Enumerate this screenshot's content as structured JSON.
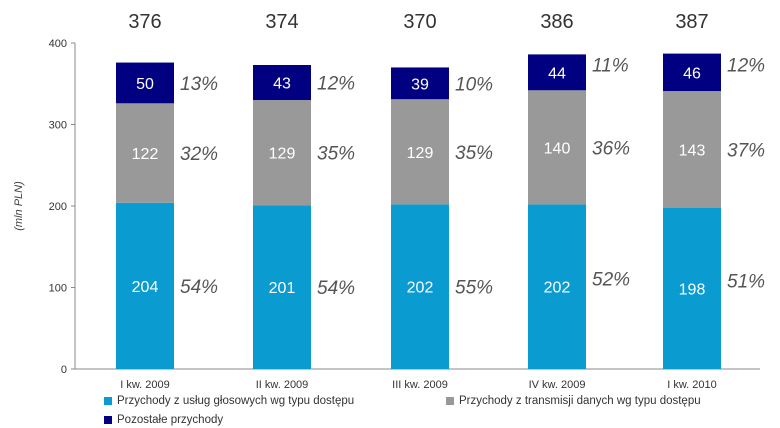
{
  "chart_data": {
    "type": "bar",
    "stacked": true,
    "ylabel": "(mln PLN)",
    "ylim": [
      0,
      400
    ],
    "yticks": [
      0,
      100,
      200,
      300,
      400
    ],
    "categories": [
      "I kw. 2009",
      "II kw. 2009",
      "III kw. 2009",
      "IV kw. 2009",
      "I kw. 2010"
    ],
    "totals": [
      "376",
      "374",
      "370",
      "386",
      "387"
    ],
    "series": [
      {
        "name": "Przychody z usług głosowych wg typu dostępu",
        "color": "#0a9bd1",
        "values": [
          204,
          201,
          202,
          202,
          198
        ],
        "percents": [
          "54%",
          "54%",
          "55%",
          "52%",
          "51%"
        ]
      },
      {
        "name": "Przychody z transmisji danych wg typu dostępu",
        "color": "#999999",
        "values": [
          122,
          129,
          129,
          140,
          143
        ],
        "percents": [
          "32%",
          "35%",
          "35%",
          "36%",
          "37%"
        ]
      },
      {
        "name": "Pozostałe przychody",
        "color": "#000080",
        "values": [
          50,
          43,
          39,
          44,
          46
        ],
        "percents": [
          "13%",
          "12%",
          "10%",
          "11%",
          "12%"
        ]
      }
    ],
    "grid": false,
    "legend_position": "bottom"
  }
}
